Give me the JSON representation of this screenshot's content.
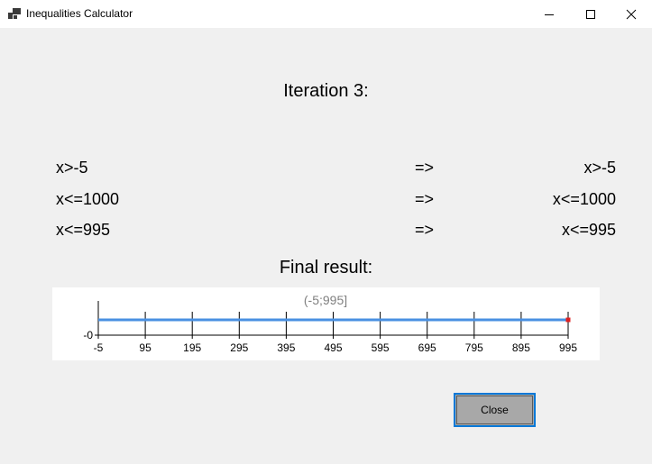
{
  "window": {
    "title": "Inequalities Calculator"
  },
  "iteration_label": "Iteration 3:",
  "rows": [
    {
      "input": "x>-5",
      "arrow": "=>",
      "output": "x>-5"
    },
    {
      "input": "x<=1000",
      "arrow": "=>",
      "output": "x<=1000"
    },
    {
      "input": "x<=995",
      "arrow": "=>",
      "output": "x<=995"
    }
  ],
  "final_result_label": "Final result:",
  "chart_data": {
    "type": "line",
    "title": "(-5;995]",
    "x": [
      -5,
      995
    ],
    "y": [
      0,
      0
    ],
    "xticks": [
      -5,
      95,
      195,
      295,
      395,
      495,
      595,
      695,
      795,
      895,
      995
    ],
    "yticks": [
      {
        "value": 0,
        "label": "-0"
      }
    ],
    "xlim": [
      -5,
      995
    ],
    "interval": {
      "from": -5,
      "to": 995,
      "left_closed": false,
      "right_closed": true
    },
    "colors": {
      "line": "#4a90e2",
      "endpoint": "#e02020",
      "title": "#808080"
    }
  },
  "close_button": {
    "label": "Close"
  }
}
